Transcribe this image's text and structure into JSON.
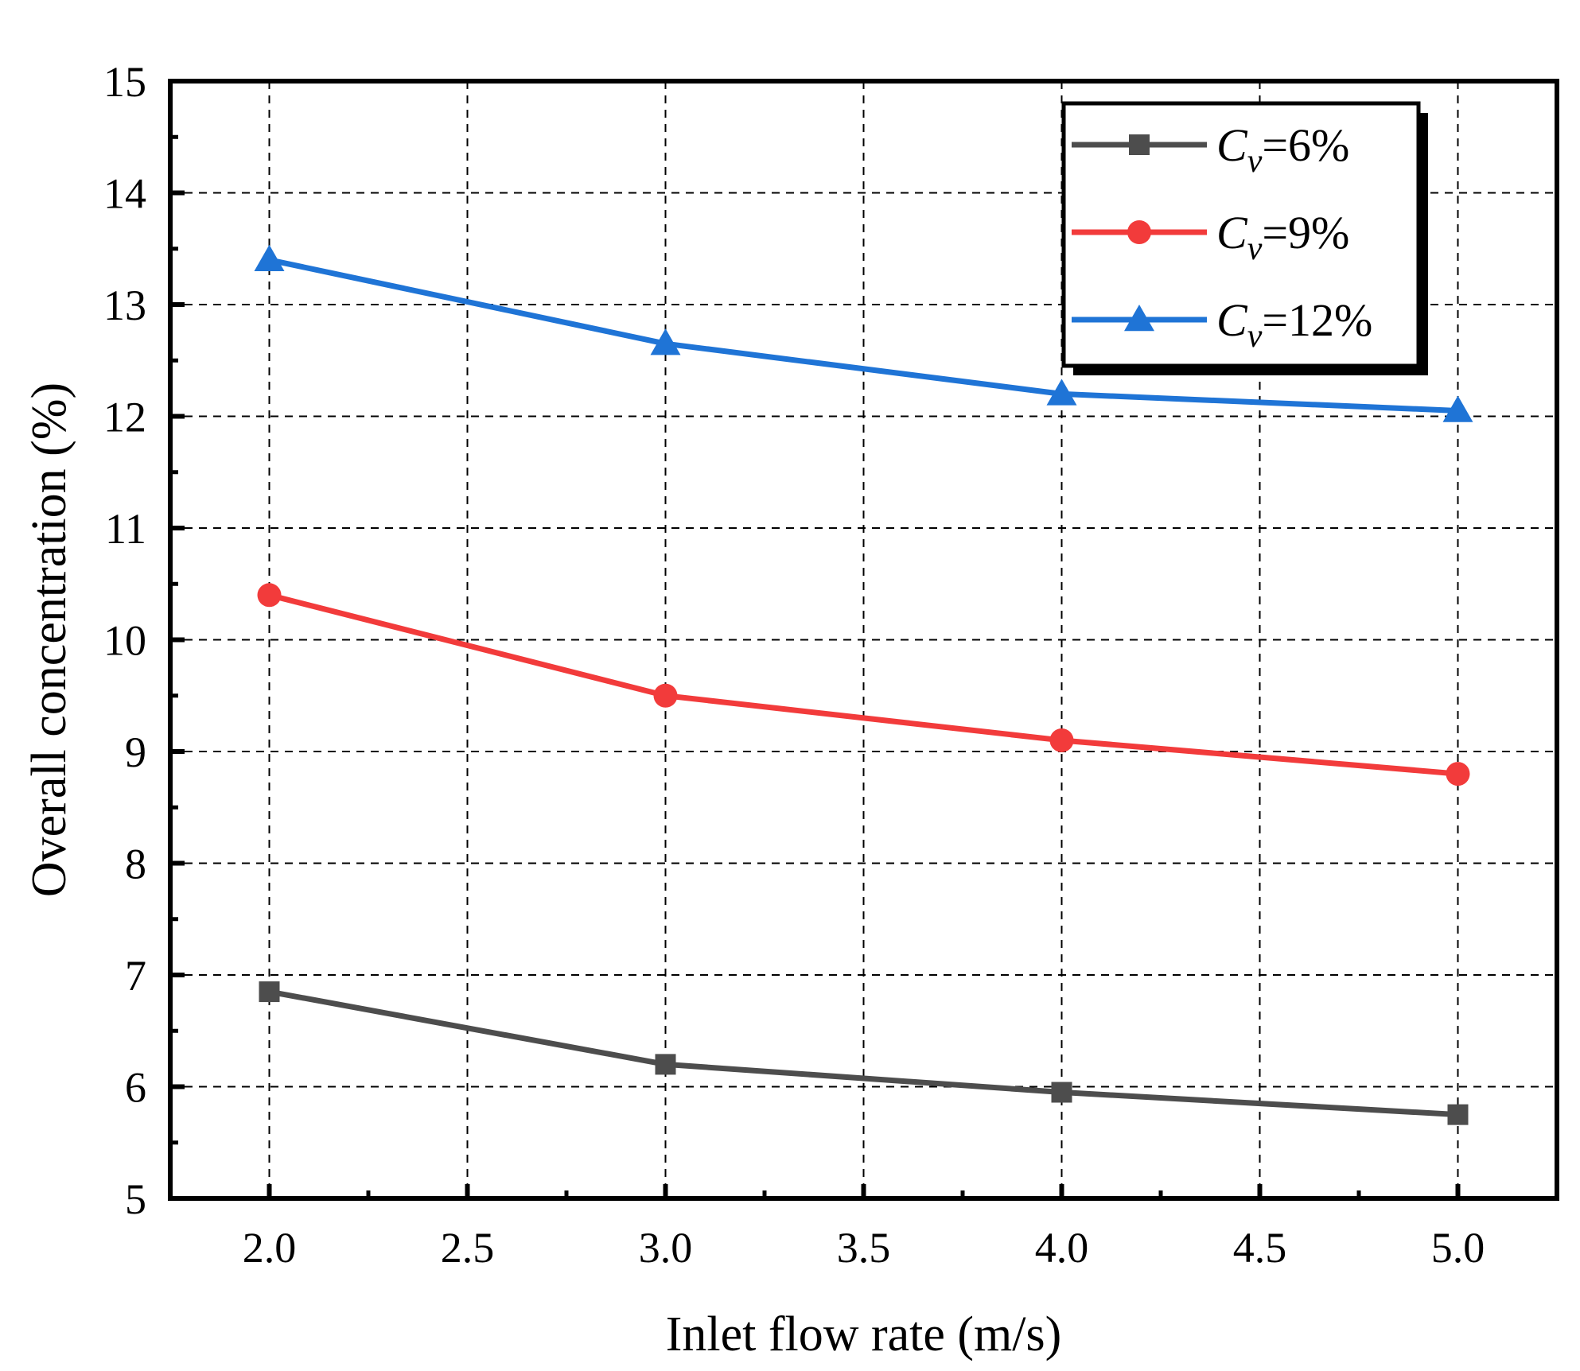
{
  "chart_data": {
    "type": "line",
    "x": [
      2.0,
      3.0,
      4.0,
      5.0
    ],
    "xlabel": "Inlet flow rate (m/s)",
    "ylabel": "Overall concentration (%)",
    "xlim": [
      1.75,
      5.25
    ],
    "ylim": [
      5,
      15
    ],
    "xticks": [
      2.0,
      2.5,
      3.0,
      3.5,
      4.0,
      4.5,
      5.0
    ],
    "xtick_labels": [
      "2.0",
      "2.5",
      "3.0",
      "3.5",
      "4.0",
      "4.5",
      "5.0"
    ],
    "yticks": [
      5,
      6,
      7,
      8,
      9,
      10,
      11,
      12,
      13,
      14,
      15
    ],
    "ytick_labels": [
      "5",
      "6",
      "7",
      "8",
      "9",
      "10",
      "11",
      "12",
      "13",
      "14",
      "15"
    ],
    "grid": true,
    "legend_position": "top-right",
    "series": [
      {
        "name": "Cv=6%",
        "legend_main": "C",
        "legend_sub": "v",
        "legend_rest": "=6%",
        "color": "#4d4d4d",
        "marker": "square",
        "values": [
          6.85,
          6.2,
          5.95,
          5.75
        ]
      },
      {
        "name": "Cv=9%",
        "legend_main": "C",
        "legend_sub": "v",
        "legend_rest": "=9%",
        "color": "#f23b3b",
        "marker": "circle",
        "values": [
          10.4,
          9.5,
          9.1,
          8.8
        ]
      },
      {
        "name": "Cv=12%",
        "legend_main": "C",
        "legend_sub": "v",
        "legend_rest": "=12%",
        "color": "#1f74d6",
        "marker": "triangle",
        "values": [
          13.4,
          12.65,
          12.2,
          12.05
        ]
      }
    ]
  }
}
